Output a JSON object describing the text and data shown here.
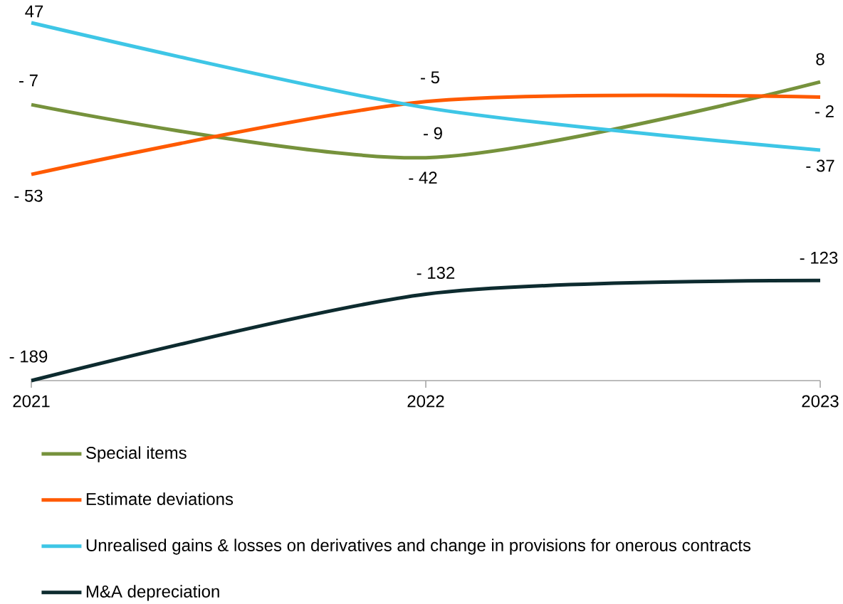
{
  "chart_data": {
    "type": "line",
    "categories": [
      "2021",
      "2022",
      "2023"
    ],
    "legend": "bottom",
    "series": [
      {
        "name": "Special items",
        "color": "#76923c",
        "values": [
          -7,
          -42,
          8
        ],
        "value_labels": [
          "- 7",
          "- 42",
          "8"
        ]
      },
      {
        "name": "Estimate deviations",
        "color": "#ff5a00",
        "values": [
          -53,
          -5,
          -2
        ],
        "value_labels": [
          "- 53",
          "- 5",
          "- 2"
        ]
      },
      {
        "name": "Unrealised gains & losses on derivatives and change in provisions for onerous contracts",
        "color": "#3ec6e6",
        "values": [
          47,
          -9,
          -37
        ],
        "value_labels": [
          "47",
          "- 9",
          "- 37"
        ]
      },
      {
        "name": "M&A depreciation",
        "color": "#0d2b2f",
        "values": [
          -189,
          -132,
          -123
        ],
        "value_labels": [
          "- 189",
          "- 132",
          "- 123"
        ]
      }
    ]
  }
}
